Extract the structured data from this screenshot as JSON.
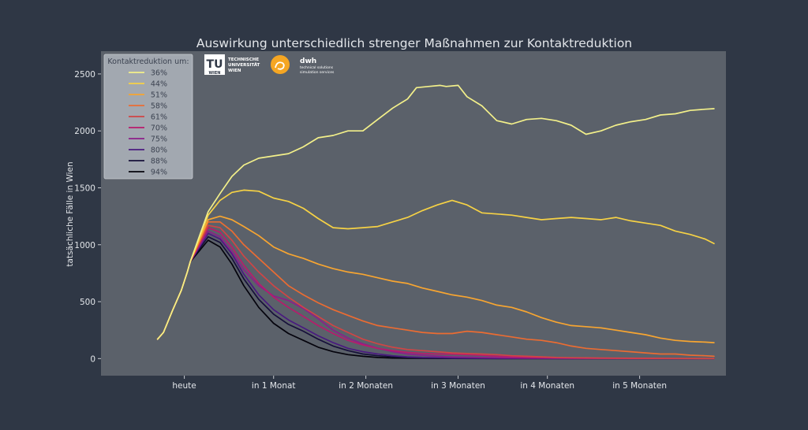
{
  "chart_data": {
    "type": "line",
    "title": "Auswirkung unterschiedlich strenger Maßnahmen zur Kontaktreduktion",
    "xlabel": "",
    "ylabel": "tatsächliche Fälle in Wien",
    "ylim": [
      -150,
      2700
    ],
    "yticks": [
      0,
      500,
      1000,
      1500,
      2000,
      2500
    ],
    "x_unit": "Tage ab heute",
    "xlim": [
      -28,
      182
    ],
    "xticks": [
      {
        "x": 0,
        "label": "heute"
      },
      {
        "x": 30,
        "label": "in 1 Monat"
      },
      {
        "x": 61,
        "label": "in 2 Monaten"
      },
      {
        "x": 92,
        "label": "in 3 Monaten"
      },
      {
        "x": 122,
        "label": "in 4 Monaten"
      },
      {
        "x": 153,
        "label": "in 5 Monaten"
      }
    ],
    "grid": false,
    "legend": {
      "title": "Kontaktreduktion um:",
      "position": "top-left"
    },
    "common_start": {
      "x": [
        -9,
        -7,
        -4,
        -1,
        1,
        2
      ],
      "y": [
        170,
        230,
        420,
        600,
        760,
        850
      ]
    },
    "series": [
      {
        "name": "36%",
        "color": "#f3f08a",
        "x": [
          2,
          8,
          12,
          16,
          20,
          25,
          30,
          35,
          40,
          45,
          50,
          55,
          60,
          65,
          70,
          75,
          78,
          82,
          86,
          88,
          92,
          95,
          100,
          105,
          110,
          115,
          120,
          125,
          130,
          135,
          140,
          145,
          150,
          155,
          160,
          165,
          170,
          175,
          178
        ],
        "y": [
          850,
          1290,
          1450,
          1600,
          1700,
          1760,
          1780,
          1800,
          1860,
          1940,
          1960,
          2000,
          2000,
          2100,
          2200,
          2280,
          2380,
          2390,
          2400,
          2390,
          2400,
          2300,
          2220,
          2090,
          2060,
          2100,
          2110,
          2090,
          2050,
          1970,
          2000,
          2050,
          2080,
          2100,
          2140,
          2150,
          2180,
          2190,
          2195
        ]
      },
      {
        "name": "44%",
        "color": "#f6d245",
        "x": [
          2,
          8,
          12,
          16,
          20,
          25,
          30,
          35,
          40,
          45,
          50,
          55,
          60,
          65,
          70,
          75,
          80,
          85,
          90,
          95,
          100,
          105,
          110,
          115,
          120,
          125,
          130,
          135,
          140,
          145,
          150,
          155,
          160,
          165,
          170,
          175,
          178
        ],
        "y": [
          850,
          1260,
          1390,
          1460,
          1480,
          1470,
          1410,
          1380,
          1320,
          1230,
          1150,
          1140,
          1150,
          1160,
          1200,
          1240,
          1300,
          1350,
          1390,
          1350,
          1280,
          1270,
          1260,
          1240,
          1220,
          1230,
          1240,
          1230,
          1220,
          1240,
          1210,
          1190,
          1170,
          1120,
          1090,
          1050,
          1010
        ]
      },
      {
        "name": "51%",
        "color": "#f7a531",
        "x": [
          2,
          8,
          12,
          16,
          20,
          25,
          30,
          35,
          40,
          45,
          50,
          55,
          60,
          65,
          70,
          75,
          80,
          85,
          90,
          95,
          100,
          105,
          110,
          115,
          120,
          125,
          130,
          135,
          140,
          145,
          150,
          155,
          160,
          165,
          170,
          175,
          178
        ],
        "y": [
          850,
          1220,
          1250,
          1220,
          1160,
          1080,
          980,
          920,
          880,
          830,
          790,
          760,
          740,
          710,
          680,
          660,
          620,
          590,
          560,
          540,
          510,
          470,
          450,
          410,
          360,
          320,
          290,
          280,
          270,
          250,
          230,
          210,
          180,
          160,
          150,
          145,
          140
        ]
      },
      {
        "name": "58%",
        "color": "#eb6c32",
        "x": [
          2,
          8,
          12,
          16,
          20,
          25,
          30,
          35,
          40,
          45,
          50,
          55,
          60,
          65,
          70,
          75,
          80,
          85,
          90,
          95,
          100,
          105,
          110,
          115,
          120,
          125,
          130,
          135,
          140,
          145,
          150,
          155,
          160,
          165,
          170,
          175,
          178
        ],
        "y": [
          850,
          1200,
          1200,
          1120,
          1000,
          880,
          760,
          640,
          560,
          490,
          430,
          380,
          330,
          290,
          270,
          250,
          230,
          220,
          220,
          240,
          230,
          210,
          190,
          170,
          160,
          140,
          110,
          90,
          80,
          70,
          60,
          50,
          40,
          40,
          30,
          25,
          20
        ]
      },
      {
        "name": "61%",
        "color": "#d04545",
        "x": [
          2,
          8,
          12,
          16,
          20,
          25,
          30,
          35,
          40,
          45,
          50,
          55,
          60,
          65,
          70,
          75,
          80,
          85,
          90,
          95,
          100,
          105,
          110,
          115,
          120,
          125,
          130,
          135,
          140,
          150,
          160,
          170,
          178
        ],
        "y": [
          850,
          1170,
          1150,
          1040,
          900,
          760,
          640,
          540,
          450,
          370,
          290,
          230,
          170,
          130,
          100,
          80,
          70,
          60,
          50,
          45,
          40,
          35,
          25,
          20,
          15,
          10,
          8,
          6,
          5,
          3,
          2,
          1,
          0
        ]
      },
      {
        "name": "70%",
        "color": "#b81b6c",
        "x": [
          2,
          8,
          12,
          16,
          20,
          25,
          30,
          35,
          40,
          45,
          50,
          55,
          60,
          65,
          70,
          75,
          80,
          85,
          90,
          95,
          100,
          105,
          110,
          115,
          120,
          130,
          140,
          150,
          160,
          170,
          178
        ],
        "y": [
          850,
          1150,
          1110,
          980,
          820,
          660,
          540,
          450,
          370,
          290,
          220,
          160,
          120,
          90,
          70,
          55,
          45,
          40,
          40,
          35,
          30,
          20,
          15,
          10,
          8,
          5,
          3,
          2,
          1,
          0,
          0
        ]
      },
      {
        "name": "75%",
        "color": "#8c1f8a",
        "x": [
          2,
          8,
          12,
          16,
          20,
          25,
          30,
          35,
          40,
          45,
          50,
          55,
          60,
          65,
          70,
          75,
          80,
          85,
          90,
          100,
          110,
          120,
          130,
          140,
          150,
          160,
          170,
          178
        ],
        "y": [
          850,
          1120,
          1070,
          940,
          780,
          640,
          550,
          510,
          440,
          350,
          250,
          180,
          130,
          90,
          60,
          40,
          30,
          20,
          15,
          10,
          6,
          4,
          2,
          1,
          0,
          0,
          0,
          0
        ]
      },
      {
        "name": "80%",
        "color": "#4a1a80",
        "x": [
          2,
          8,
          12,
          16,
          20,
          25,
          30,
          35,
          40,
          45,
          50,
          55,
          60,
          65,
          70,
          75,
          80,
          85,
          90,
          100,
          110,
          120,
          130,
          140,
          150,
          160,
          170,
          178
        ],
        "y": [
          850,
          1100,
          1050,
          920,
          740,
          560,
          430,
          340,
          270,
          200,
          140,
          90,
          60,
          40,
          25,
          15,
          10,
          8,
          5,
          3,
          2,
          1,
          0,
          0,
          0,
          0,
          0,
          0
        ]
      },
      {
        "name": "88%",
        "color": "#16103a",
        "x": [
          2,
          8,
          12,
          16,
          20,
          25,
          30,
          35,
          40,
          45,
          50,
          55,
          60,
          65,
          70,
          75,
          80,
          90,
          100,
          110,
          120,
          130,
          140,
          150,
          160,
          170,
          178
        ],
        "y": [
          850,
          1070,
          1020,
          880,
          700,
          520,
          390,
          300,
          240,
          170,
          110,
          70,
          40,
          25,
          15,
          8,
          5,
          2,
          1,
          0,
          0,
          0,
          0,
          0,
          0,
          0,
          0
        ]
      },
      {
        "name": "94%",
        "color": "#04030c",
        "x": [
          2,
          8,
          12,
          16,
          20,
          25,
          30,
          35,
          40,
          45,
          50,
          55,
          60,
          65,
          70,
          75,
          80,
          90,
          100,
          110,
          120,
          130,
          140,
          150,
          160,
          170,
          178
        ],
        "y": [
          850,
          1040,
          980,
          830,
          640,
          450,
          310,
          220,
          160,
          100,
          60,
          35,
          20,
          10,
          5,
          3,
          2,
          1,
          0,
          0,
          0,
          0,
          0,
          0,
          0,
          0,
          0
        ]
      }
    ]
  },
  "logos": {
    "tu_mark": "TU",
    "tu_sub": "WIEN",
    "tu_text": [
      "TECHNISCHE",
      "UNIVERSITÄT",
      "WIEN"
    ],
    "dwh_name": "dwh",
    "dwh_text": [
      "technical solutions",
      "simulation services"
    ]
  }
}
